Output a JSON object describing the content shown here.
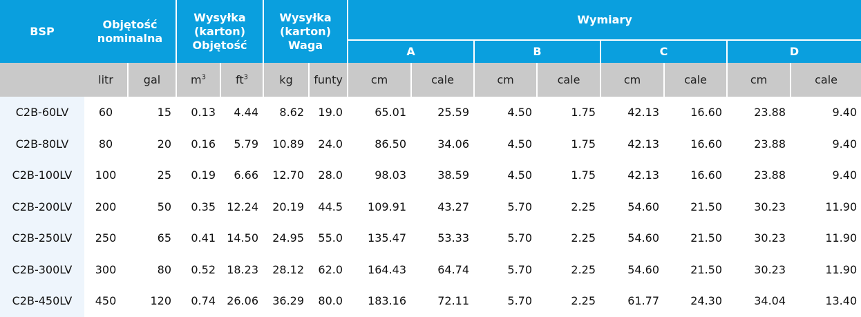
{
  "header": {
    "bsp": "BSP",
    "volume_line1": "Objętość",
    "volume_line2": "nominalna",
    "ship_volume_line1": "Wysyłka",
    "ship_volume_line2": "(karton)",
    "ship_volume_line3": "Objętość",
    "ship_weight_line1": "Wysyłka",
    "ship_weight_line2": "(karton)",
    "ship_weight_line3": "Waga",
    "dimensions": "Wymiary",
    "dim_a": "A",
    "dim_b": "B",
    "dim_c": "C",
    "dim_d": "D"
  },
  "units": {
    "litr": "litr",
    "gal": "gal",
    "m": "m",
    "m_exp": "3",
    "ft": "ft",
    "ft_exp": "3",
    "kg": "kg",
    "funty": "funty",
    "cm_a": "cm",
    "cale_a": "cale",
    "cm_b": "cm",
    "cale_b": "cale",
    "cm_c": "cm",
    "cale_c": "cale",
    "cm_d": "cm",
    "cale_d": "cale"
  },
  "rows": [
    {
      "model": "C2B-60LV",
      "litr": "60",
      "gal": "15",
      "m3": "0.13",
      "ft3": "4.44",
      "kg": "8.62",
      "lb": "19.0",
      "a_cm": "65.01",
      "a_in": "25.59",
      "b_cm": "4.50",
      "b_in": "1.75",
      "c_cm": "42.13",
      "c_in": "16.60",
      "d_cm": "23.88",
      "d_in": "9.40"
    },
    {
      "model": "C2B-80LV",
      "litr": "80",
      "gal": "20",
      "m3": "0.16",
      "ft3": "5.79",
      "kg": "10.89",
      "lb": "24.0",
      "a_cm": "86.50",
      "a_in": "34.06",
      "b_cm": "4.50",
      "b_in": "1.75",
      "c_cm": "42.13",
      "c_in": "16.60",
      "d_cm": "23.88",
      "d_in": "9.40"
    },
    {
      "model": "C2B-100LV",
      "litr": "100",
      "gal": "25",
      "m3": "0.19",
      "ft3": "6.66",
      "kg": "12.70",
      "lb": "28.0",
      "a_cm": "98.03",
      "a_in": "38.59",
      "b_cm": "4.50",
      "b_in": "1.75",
      "c_cm": "42.13",
      "c_in": "16.60",
      "d_cm": "23.88",
      "d_in": "9.40"
    },
    {
      "model": "C2B-200LV",
      "litr": "200",
      "gal": "50",
      "m3": "0.35",
      "ft3": "12.24",
      "kg": "20.19",
      "lb": "44.5",
      "a_cm": "109.91",
      "a_in": "43.27",
      "b_cm": "5.70",
      "b_in": "2.25",
      "c_cm": "54.60",
      "c_in": "21.50",
      "d_cm": "30.23",
      "d_in": "11.90"
    },
    {
      "model": "C2B-250LV",
      "litr": "250",
      "gal": "65",
      "m3": "0.41",
      "ft3": "14.50",
      "kg": "24.95",
      "lb": "55.0",
      "a_cm": "135.47",
      "a_in": "53.33",
      "b_cm": "5.70",
      "b_in": "2.25",
      "c_cm": "54.60",
      "c_in": "21.50",
      "d_cm": "30.23",
      "d_in": "11.90"
    },
    {
      "model": "C2B-300LV",
      "litr": "300",
      "gal": "80",
      "m3": "0.52",
      "ft3": "18.23",
      "kg": "28.12",
      "lb": "62.0",
      "a_cm": "164.43",
      "a_in": "64.74",
      "b_cm": "5.70",
      "b_in": "2.25",
      "c_cm": "54.60",
      "c_in": "21.50",
      "d_cm": "30.23",
      "d_in": "11.90"
    },
    {
      "model": "C2B-450LV",
      "litr": "450",
      "gal": "120",
      "m3": "0.74",
      "ft3": "26.06",
      "kg": "36.29",
      "lb": "80.0",
      "a_cm": "183.16",
      "a_in": "72.11",
      "b_cm": "5.70",
      "b_in": "2.25",
      "c_cm": "61.77",
      "c_in": "24.30",
      "d_cm": "34.04",
      "d_in": "13.40"
    }
  ]
}
